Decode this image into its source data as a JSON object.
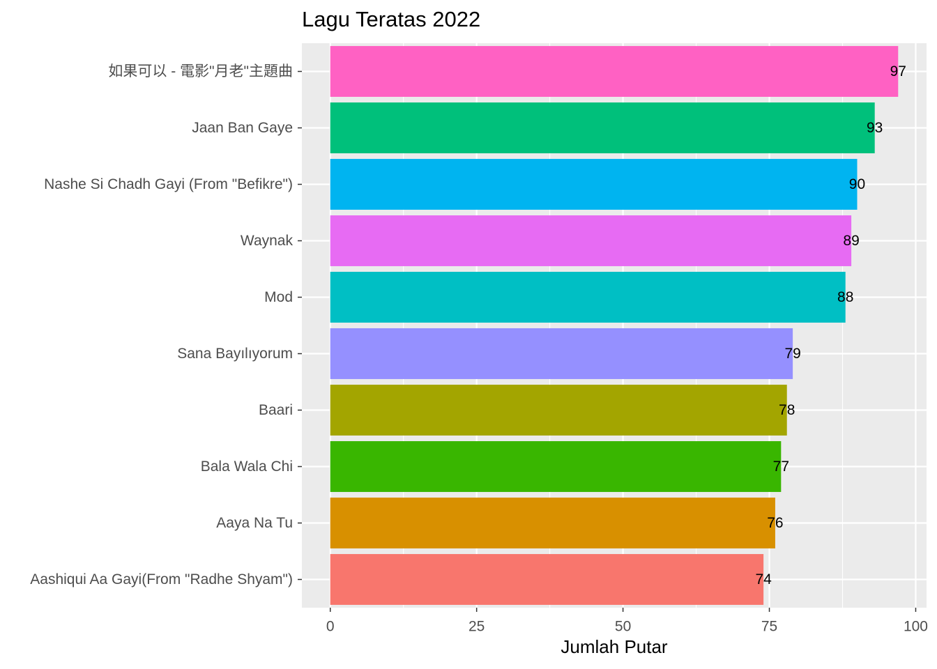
{
  "chart_data": {
    "type": "bar",
    "orientation": "horizontal",
    "title": "Lagu Teratas 2022",
    "xlabel": "Jumlah Putar",
    "ylabel": "",
    "xlim": [
      -4.85,
      101.85
    ],
    "x_ticks": [
      0,
      25,
      50,
      75,
      100
    ],
    "grid": true,
    "legend": "none",
    "categories": [
      "如果可以 - 電影\"月老\"主題曲",
      "Jaan Ban Gaye",
      "Nashe Si Chadh Gayi (From \"Befikre\")",
      "Waynak",
      "Mod",
      "Sana Bayılıyorum",
      "Baari",
      "Bala Wala Chi",
      "Aaya Na Tu",
      "Aashiqui Aa Gayi(From \"Radhe Shyam\")"
    ],
    "values": [
      97,
      93,
      90,
      89,
      88,
      79,
      78,
      77,
      76,
      74
    ],
    "colors": [
      "#FF61C3",
      "#00C07B",
      "#00B4F0",
      "#E76BF3",
      "#00BFC4",
      "#9590FF",
      "#A3A500",
      "#39B600",
      "#D89000",
      "#F8766D"
    ]
  },
  "style": {
    "panel_background": "#EBEBEB",
    "grid_major": "#FFFFFF",
    "axis_text": "#4D4D4D",
    "tick_color": "#333333",
    "label_text": "#000000"
  }
}
